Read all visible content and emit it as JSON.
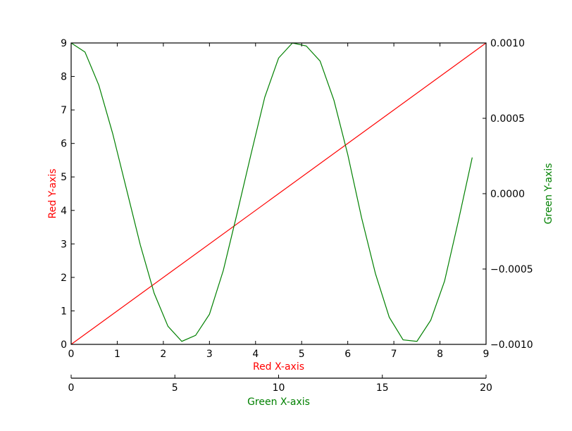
{
  "chart_data": {
    "type": "line",
    "title": "",
    "grid": false,
    "legend": "none",
    "series": [
      {
        "color": "#ff0000",
        "axes": "red",
        "x": [
          0,
          9
        ],
        "y": [
          0,
          9
        ]
      },
      {
        "color": "#008000",
        "axes": "green",
        "x": [
          0,
          0.667,
          1.333,
          2,
          2.667,
          3.333,
          4,
          4.667,
          5.333,
          6,
          6.667,
          7.333,
          8,
          8.667,
          9.333,
          10,
          10.667,
          11.333,
          12,
          12.667,
          13.333,
          14,
          14.667,
          15.333,
          16,
          16.667,
          17.333,
          18,
          18.667,
          19.333
        ],
        "y": [
          0.001,
          0.00094,
          0.00072,
          0.0004,
          3e-05,
          -0.00034,
          -0.00066,
          -0.00088,
          -0.00098,
          -0.00094,
          -0.0008,
          -0.00051,
          -0.00013,
          0.00026,
          0.00064,
          0.0009,
          0.001,
          0.00098,
          0.00088,
          0.00062,
          0.00026,
          -0.00016,
          -0.00053,
          -0.00082,
          -0.00097,
          -0.00098,
          -0.00084,
          -0.00058,
          -0.00018,
          0.00024
        ]
      }
    ],
    "red_x_axis": {
      "label": "Red X-axis",
      "color": "#ff0000",
      "lim": [
        0,
        9
      ],
      "ticks": [
        "0",
        "1",
        "2",
        "3",
        "4",
        "5",
        "6",
        "7",
        "8",
        "9"
      ]
    },
    "red_y_axis": {
      "label": "Red Y-axis",
      "color": "#ff0000",
      "lim": [
        0,
        9
      ],
      "ticks": [
        "0",
        "1",
        "2",
        "3",
        "4",
        "5",
        "6",
        "7",
        "8",
        "9"
      ]
    },
    "green_x_axis": {
      "label": "Green X-axis",
      "color": "#008000",
      "lim": [
        0,
        20
      ],
      "ticks": [
        "0",
        "5",
        "10",
        "15",
        "20"
      ]
    },
    "green_y_axis": {
      "label": "Green Y-axis",
      "color": "#008000",
      "lim": [
        -0.001,
        0.001
      ],
      "ticks": [
        "−0.0010",
        "−0.0005",
        "0.0000",
        "0.0005",
        "0.0010"
      ]
    }
  }
}
